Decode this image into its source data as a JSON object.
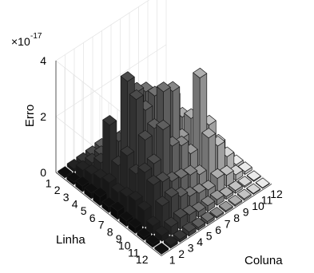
{
  "chart_data": {
    "type": "bar3d",
    "zlabel": "Erro",
    "xlabel": "Linha",
    "ylabel": "Coluna",
    "exponent_label": "×10",
    "exponent_power": "-17",
    "zlim": [
      0,
      4
    ],
    "zticks": [
      "0",
      "2",
      "4"
    ],
    "row_ticks": [
      "1",
      "2",
      "3",
      "4",
      "5",
      "6",
      "7",
      "8",
      "9",
      "10",
      "11",
      "12"
    ],
    "col_ticks": [
      "1",
      "2",
      "3",
      "4",
      "5",
      "6",
      "7",
      "8",
      "9",
      "10",
      "11",
      "12"
    ],
    "grid": true,
    "values": [
      [
        0.05,
        0.1,
        0.12,
        0.15,
        0.2,
        0.1,
        0.05,
        0.08,
        0.05,
        0.05,
        0.03,
        0.02
      ],
      [
        0.1,
        0.3,
        0.35,
        0.4,
        0.3,
        0.2,
        0.3,
        0.2,
        0.1,
        0.08,
        0.05,
        0.03
      ],
      [
        0.2,
        0.4,
        0.6,
        0.7,
        0.8,
        0.4,
        0.2,
        0.3,
        0.2,
        0.1,
        0.05,
        0.04
      ],
      [
        0.2,
        0.5,
        2.2,
        1.4,
        1.2,
        1.3,
        0.4,
        0.3,
        0.2,
        0.2,
        0.1,
        0.05
      ],
      [
        0.3,
        0.6,
        1.0,
        3.8,
        3.2,
        3.0,
        2.4,
        1.8,
        0.6,
        0.3,
        0.1,
        0.05
      ],
      [
        0.2,
        0.5,
        1.6,
        3.4,
        2.8,
        3.1,
        3.0,
        2.6,
        1.7,
        0.3,
        0.2,
        0.05
      ],
      [
        0.3,
        0.6,
        1.2,
        2.2,
        2.4,
        3.5,
        3.3,
        1.4,
        1.9,
        0.6,
        0.2,
        0.05
      ],
      [
        0.2,
        0.7,
        1.5,
        1.6,
        2.6,
        1.8,
        1.6,
        1.1,
        3.6,
        1.7,
        0.8,
        0.1
      ],
      [
        0.2,
        0.6,
        1.3,
        1.2,
        1.0,
        0.9,
        0.8,
        0.6,
        1.7,
        1.2,
        0.6,
        0.1
      ],
      [
        0.1,
        0.3,
        0.8,
        0.9,
        0.7,
        0.5,
        0.4,
        0.3,
        0.5,
        0.4,
        0.2,
        0.1
      ],
      [
        0.1,
        0.2,
        0.3,
        0.4,
        0.3,
        0.2,
        0.2,
        0.2,
        0.1,
        0.1,
        0.05,
        0.03
      ],
      [
        0.05,
        0.1,
        0.1,
        0.15,
        0.1,
        0.1,
        0.05,
        0.05,
        0.05,
        0.05,
        0.03,
        0.02
      ]
    ]
  }
}
